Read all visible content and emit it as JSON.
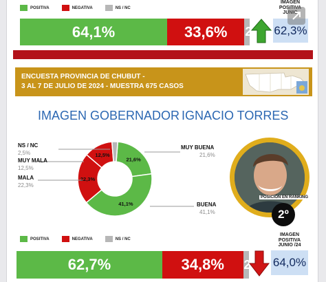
{
  "top_panel": {
    "legend": [
      {
        "label": "POSITIVA",
        "color": "#5cb947"
      },
      {
        "label": "NEGATIVA",
        "color": "#d01010"
      },
      {
        "label": "NS / NC",
        "color": "#b7b7b7"
      }
    ],
    "caption": "IMAGEN POSITIVA JUNIO",
    "side_value": "62,3%",
    "trend": "up",
    "trend_icon": "up-arrow-icon"
  },
  "survey_band": {
    "line1": "ENCUESTA PROVINCIA DE CHUBUT -",
    "line2": "3 AL 7 DE JULIO DE 2024 - MUESTRA 675 CASOS"
  },
  "title": {
    "left": "IMAGEN GOBERNADOR",
    "right": "IGNACIO TORRES"
  },
  "ranking": {
    "caption": "POSICIÓN EN RANKING",
    "position": "2º"
  },
  "bottom_panel": {
    "legend": [
      {
        "label": "POSITIVA",
        "color": "#5cb947"
      },
      {
        "label": "NEGATIVA",
        "color": "#d01010"
      },
      {
        "label": "NS / NC",
        "color": "#b7b7b7"
      }
    ],
    "caption_line1": "IMAGEN",
    "caption_line2": "POSITIVA",
    "caption_line3": "JUNIO /24",
    "side_value": "64,0%",
    "trend": "down",
    "trend_icon": "down-arrow-icon"
  },
  "chart_data": [
    {
      "type": "bar",
      "orientation": "horizontal-stacked",
      "categories": [
        "POSITIVA",
        "NEGATIVA",
        "NS / NC"
      ],
      "values": [
        64.1,
        33.6,
        2.3
      ],
      "labels": [
        "64,1%",
        "33,6%",
        "2,3"
      ],
      "colors": [
        "#5cb947",
        "#d01010",
        "#b7b7b7"
      ]
    },
    {
      "type": "pie",
      "style": "donut",
      "categories": [
        "MUY BUENA",
        "BUENA",
        "MALA",
        "MUY MALA",
        "NS / NC"
      ],
      "values": [
        21.6,
        41.1,
        22.3,
        12.5,
        2.5
      ],
      "labels": [
        "21,6%",
        "41,1%",
        "22,3%",
        "12,5%",
        "2,5%"
      ],
      "colors": [
        "#5cb947",
        "#5cb947",
        "#d01010",
        "#d01010",
        "#b7b7b7"
      ]
    },
    {
      "type": "bar",
      "orientation": "horizontal-stacked",
      "categories": [
        "POSITIVA",
        "NEGATIVA",
        "NS / NC"
      ],
      "values": [
        62.7,
        34.8,
        2.5
      ],
      "labels": [
        "62,7%",
        "34,8%",
        "2,5"
      ],
      "colors": [
        "#5cb947",
        "#d01010",
        "#b7b7b7"
      ]
    }
  ]
}
